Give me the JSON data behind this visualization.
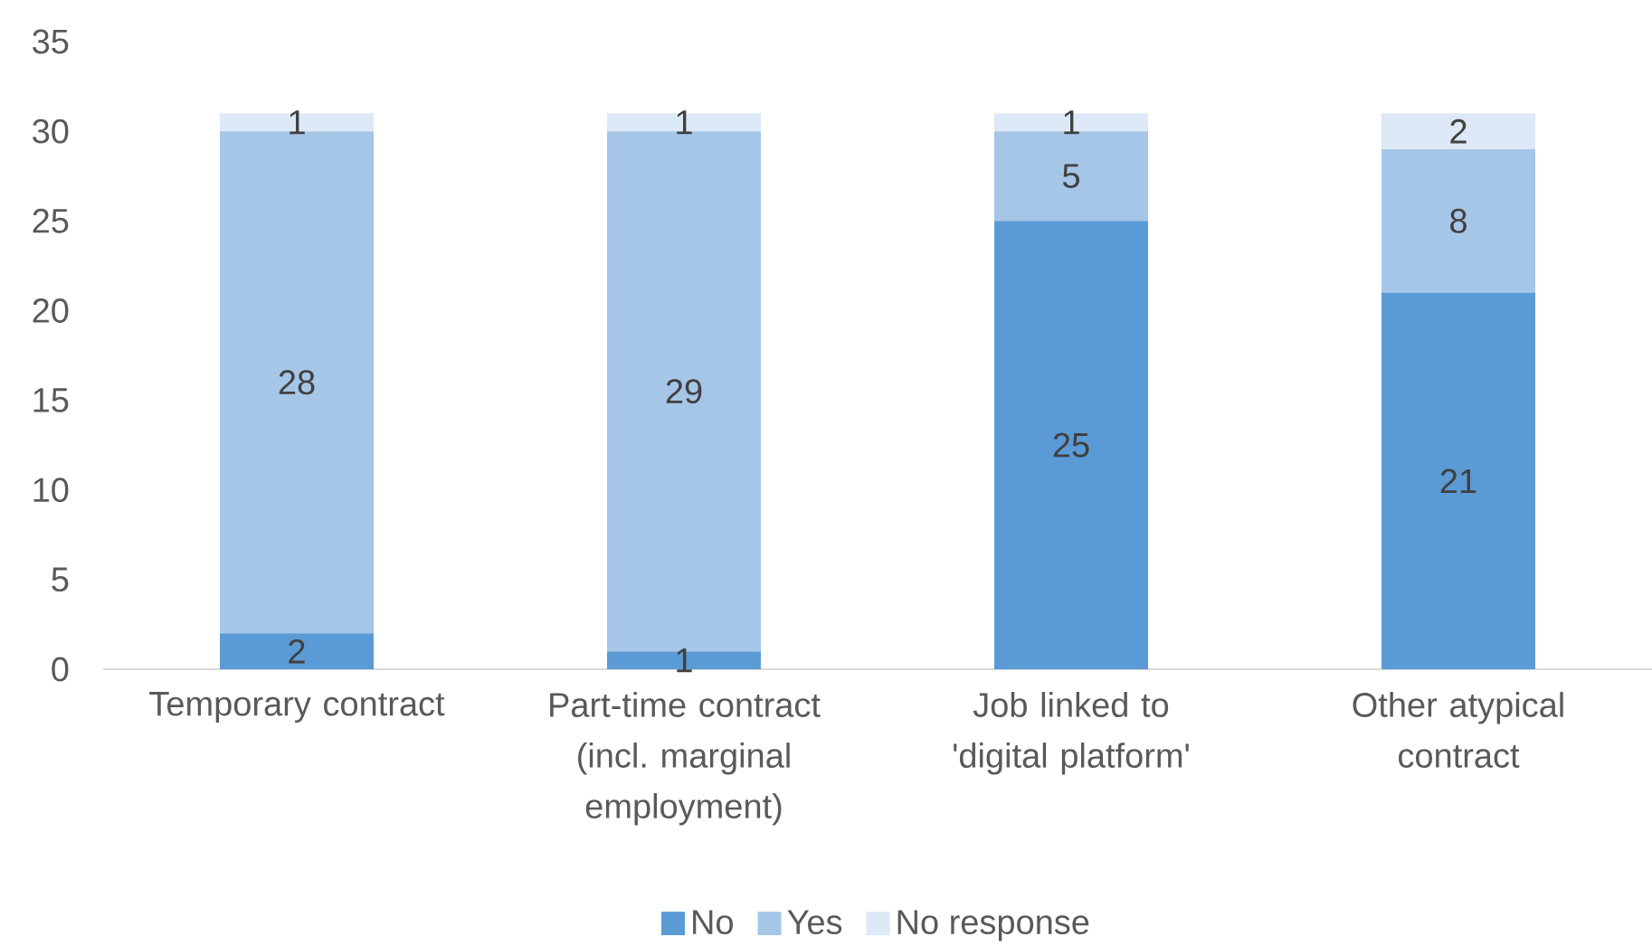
{
  "chart_data": {
    "type": "bar",
    "stacked": true,
    "categories": [
      "Temporary contract",
      "Part-time contract (incl. marginal employment)",
      "Job linked to 'digital platform'",
      "Other atypical contract"
    ],
    "series": [
      {
        "name": "No",
        "color": "#5b9bd5",
        "values": [
          2,
          1,
          25,
          21
        ]
      },
      {
        "name": "Yes",
        "color": "#a6c6e8",
        "values": [
          28,
          29,
          5,
          8
        ]
      },
      {
        "name": "No response",
        "color": "#dde9f6",
        "values": [
          1,
          1,
          1,
          2
        ]
      }
    ],
    "ylim": [
      0,
      35
    ],
    "yticks": [
      0,
      5,
      10,
      15,
      20,
      25,
      30,
      35
    ],
    "data_labels": true,
    "legend": "bottom"
  }
}
